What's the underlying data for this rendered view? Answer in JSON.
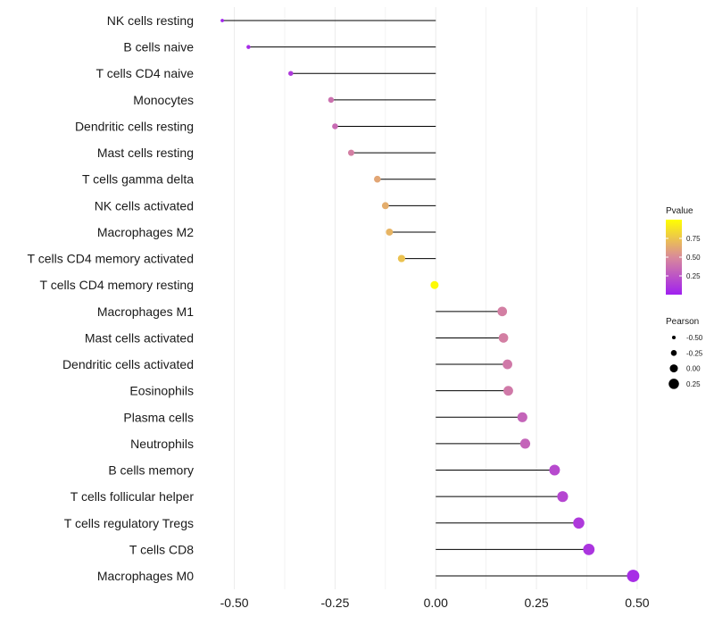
{
  "chart_data": {
    "type": "lollipop",
    "categories": [
      "NK cells resting",
      "B cells naive",
      "T cells CD4 naive",
      "Monocytes",
      "Dendritic cells resting",
      "Mast cells resting",
      "T cells gamma delta",
      "NK cells activated",
      "Macrophages M2",
      "T cells CD4 memory activated",
      "T cells CD4 memory resting",
      "Macrophages M1",
      "Mast cells activated",
      "Dendritic cells activated",
      "Eosinophils",
      "Plasma cells",
      "Neutrophils",
      "B cells memory",
      "T cells follicular helper",
      "T cells regulatory  Tregs",
      "T cells CD8",
      "Macrophages M0"
    ],
    "pearson": [
      -0.53,
      -0.465,
      -0.36,
      -0.26,
      -0.25,
      -0.21,
      -0.145,
      -0.125,
      -0.115,
      -0.085,
      -0.003,
      0.165,
      0.168,
      0.178,
      0.18,
      0.215,
      0.222,
      0.295,
      0.315,
      0.355,
      0.38,
      0.49
    ],
    "pvalue": [
      0.02,
      0.05,
      0.12,
      0.38,
      0.35,
      0.45,
      0.62,
      0.65,
      0.68,
      0.74,
      0.98,
      0.45,
      0.45,
      0.42,
      0.42,
      0.32,
      0.32,
      0.2,
      0.18,
      0.12,
      0.1,
      0.06
    ],
    "xlim": [
      -0.57,
      0.56
    ],
    "x_ticks": [
      -0.5,
      -0.25,
      0.0,
      0.25,
      0.5
    ],
    "x_tick_labels": [
      "-0.50",
      "-0.25",
      "0.00",
      "0.25",
      "0.50"
    ],
    "color_legend": {
      "title": "Pvalue",
      "ticks": [
        0.25,
        0.5,
        0.75
      ],
      "tick_labels": [
        "0.25",
        "0.50",
        "0.75"
      ],
      "low_color": "#a020f0",
      "mid_color": "#d98a9a",
      "high_color": "#ffff00",
      "range": [
        0.0,
        1.0
      ]
    },
    "size_legend": {
      "title": "Pearson",
      "values": [
        -0.5,
        -0.25,
        0.0,
        0.25
      ],
      "labels": [
        "-0.50",
        "-0.25",
        "0.00",
        "0.25"
      ]
    },
    "colors": {
      "segment": "#000000",
      "grid": "#ebebeb",
      "legend_key": "#000000"
    }
  }
}
